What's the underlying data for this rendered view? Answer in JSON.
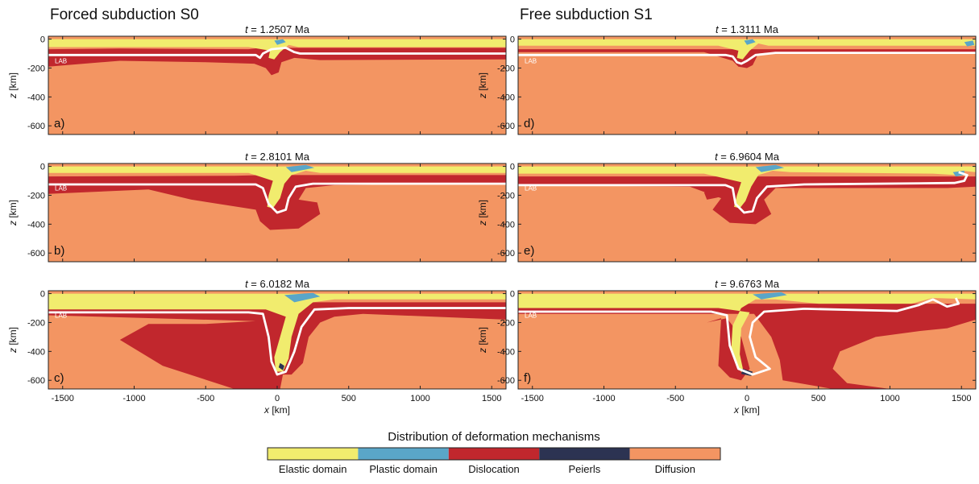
{
  "columns": [
    {
      "title": "Forced subduction S0"
    },
    {
      "title": "Free subduction S1"
    }
  ],
  "panels": [
    {
      "label": "a)",
      "time": "1.2507 Ma",
      "lab_label": "LAB"
    },
    {
      "label": "b)",
      "time": "2.8101 Ma",
      "lab_label": "LAB"
    },
    {
      "label": "c)",
      "time": "6.0182 Ma",
      "lab_label": "LAB"
    },
    {
      "label": "d)",
      "time": "1.3111 Ma",
      "lab_label": "LAB"
    },
    {
      "label": "e)",
      "time": "6.9604 Ma",
      "lab_label": "LAB"
    },
    {
      "label": "f)",
      "time": "9.6763 Ma",
      "lab_label": "LAB"
    }
  ],
  "time_prefix": "t",
  "time_eq": " = ",
  "axes": {
    "xlabel_var": "x",
    "xlabel_unit": " [km]",
    "ylabel_var": "z",
    "ylabel_unit": " [km]",
    "xticks": [
      "-1500",
      "-1000",
      "-500",
      "0",
      "500",
      "1000",
      "1500"
    ],
    "yticks": [
      "0",
      "-200",
      "-400",
      "-600"
    ]
  },
  "legend": {
    "title": "Distribution of deformation mechanisms",
    "items": [
      {
        "label": "Elastic domain",
        "color": "#f1ec6e"
      },
      {
        "label": "Plastic domain",
        "color": "#5aa6c8"
      },
      {
        "label": "Dislocation",
        "color": "#c1272d"
      },
      {
        "label": "Peierls",
        "color": "#2c3352"
      },
      {
        "label": "Diffusion",
        "color": "#f39562"
      }
    ]
  },
  "colors": {
    "diffusion": "#f39562",
    "dislocation": "#c1272d",
    "elastic": "#f1ec6e",
    "plastic": "#5aa6c8",
    "peierls": "#2c3352",
    "lab_line": "#ffffff"
  }
}
